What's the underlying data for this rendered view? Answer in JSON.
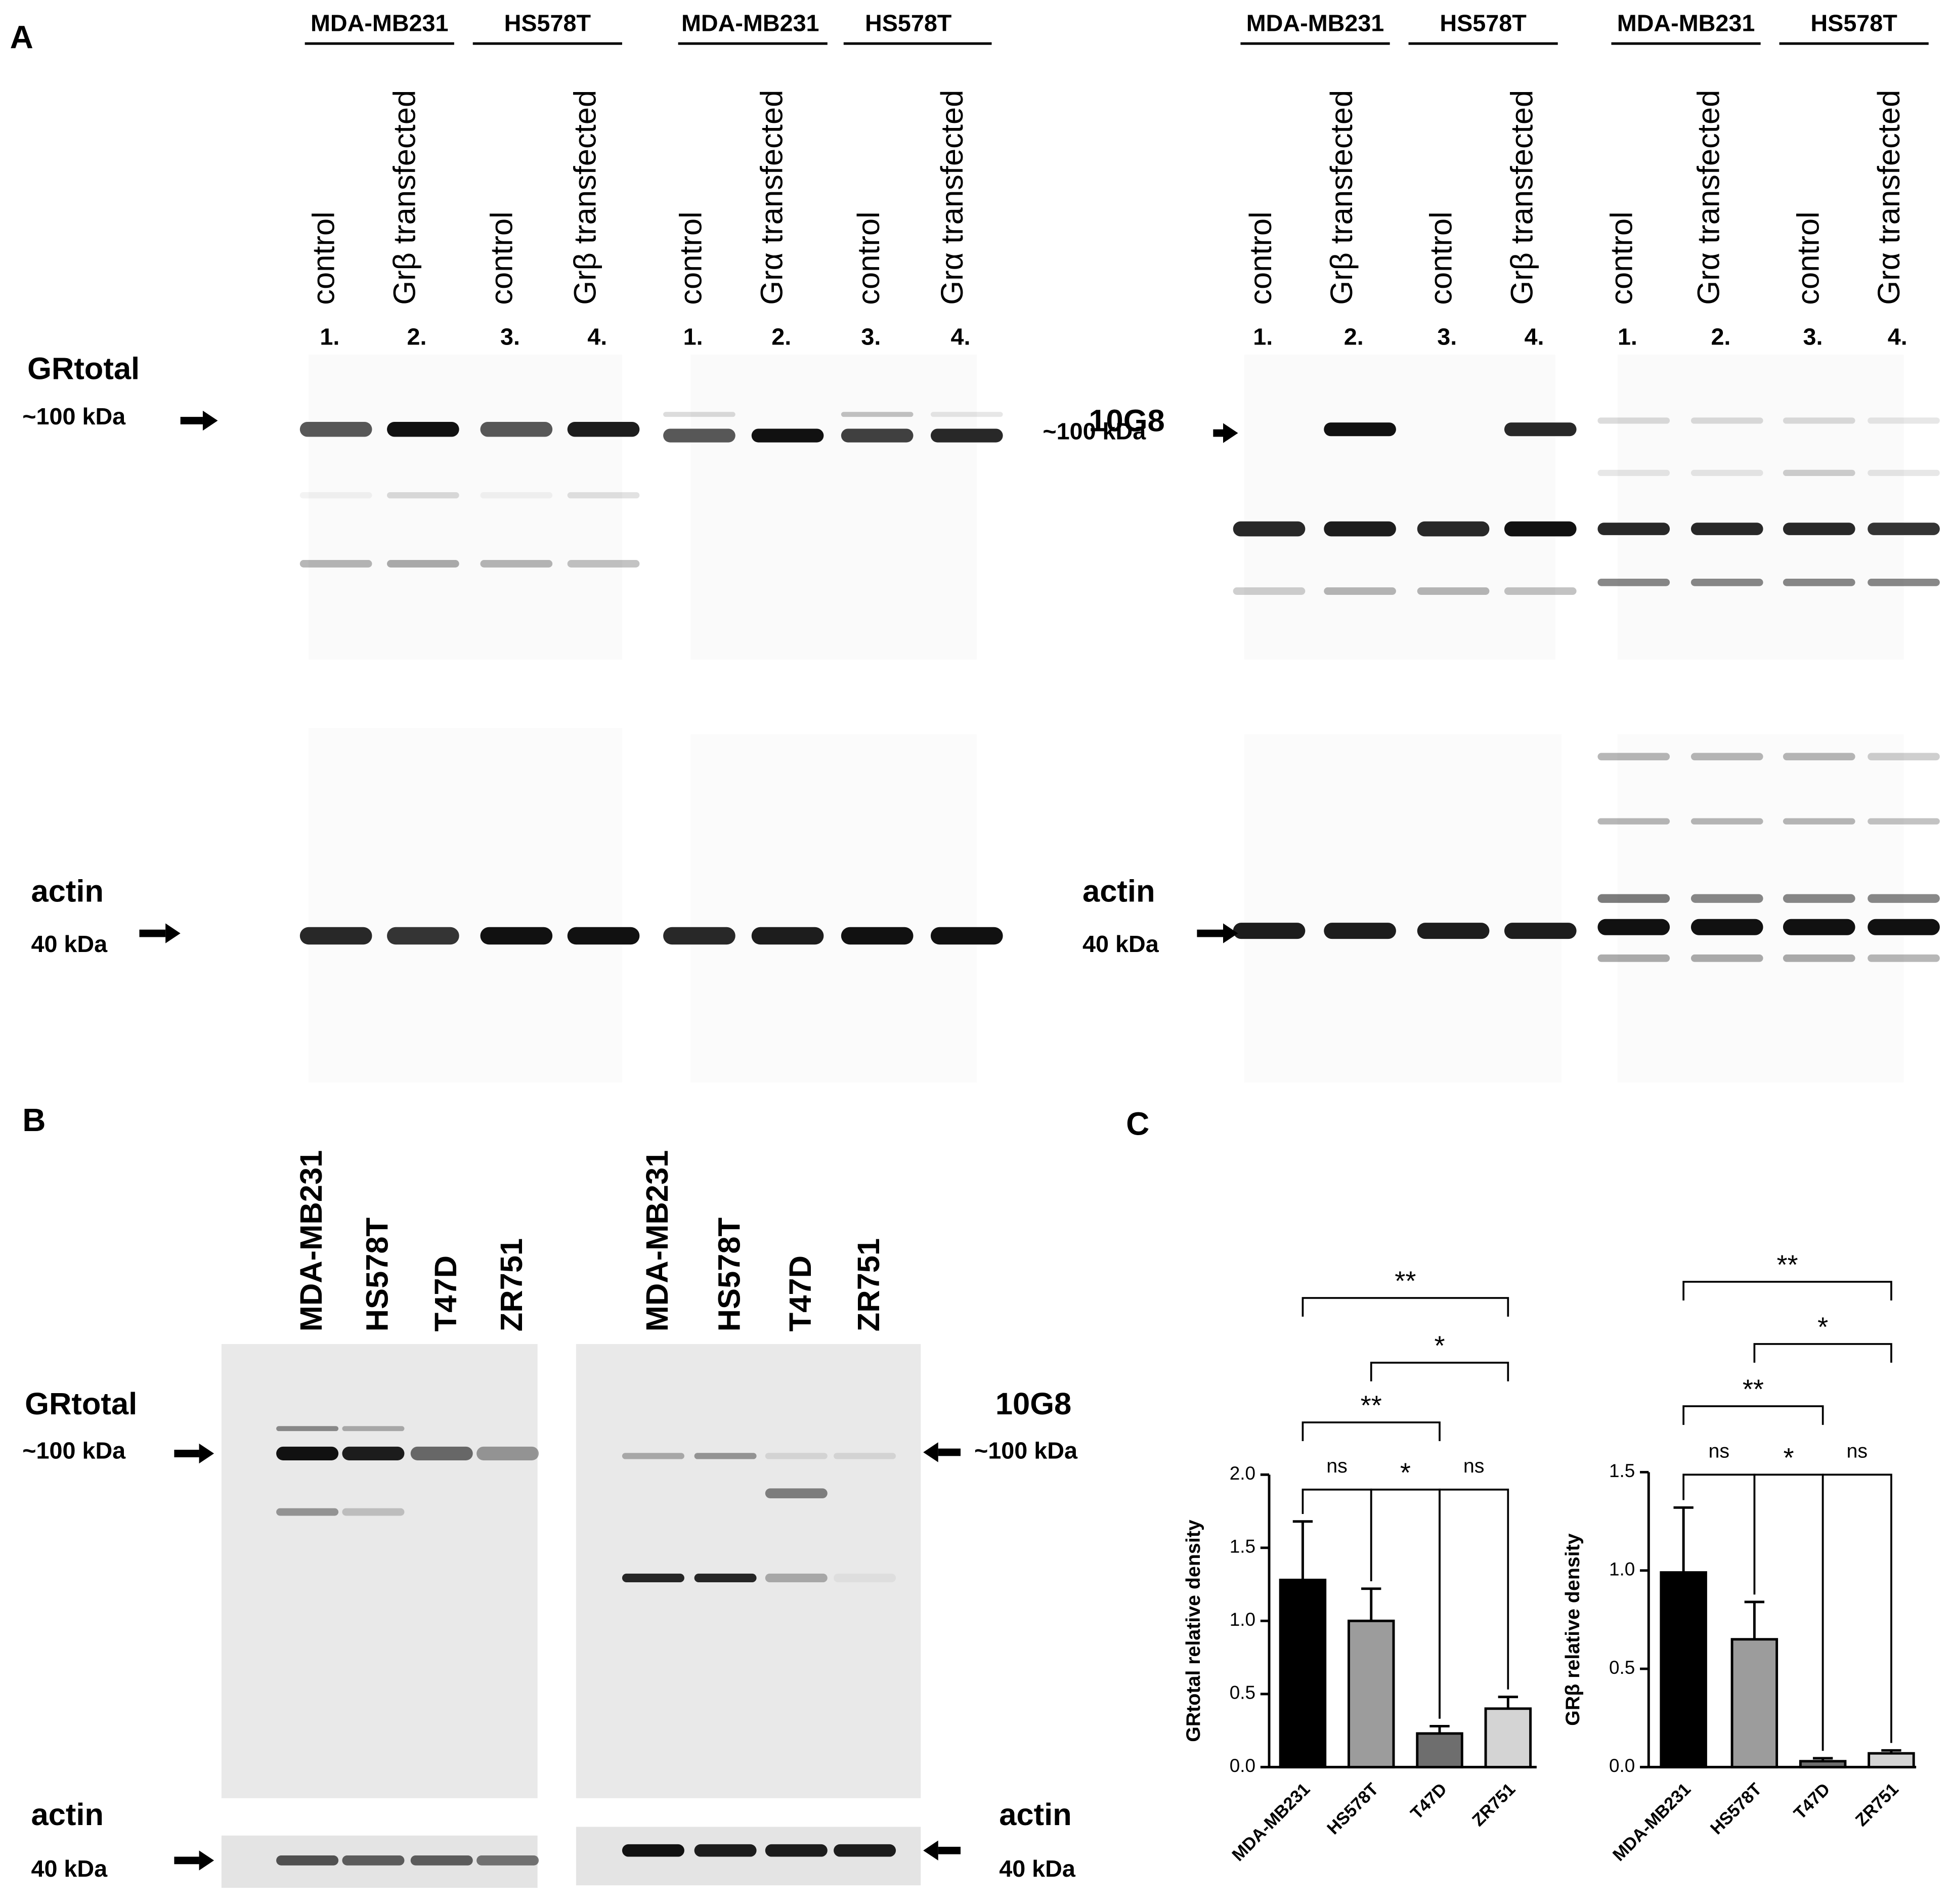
{
  "panel_a": {
    "label": "A",
    "blots": [
      {
        "cell_lines": [
          "MDA-MB231",
          "HS578T"
        ],
        "lanes": [
          "control",
          "Grβ transfected",
          "control",
          "Grβ transfected"
        ],
        "lane_numbers": [
          "1.",
          "2.",
          "3.",
          "4."
        ],
        "antibody": "GRtotal",
        "antibody_size": "~100 kDa",
        "loading": "actin",
        "loading_size": "40 kDa"
      },
      {
        "cell_lines": [
          "MDA-MB231",
          "HS578T"
        ],
        "lanes": [
          "control",
          "Grα transfected",
          "control",
          "Grα transfected"
        ],
        "lane_numbers": [
          "1.",
          "2.",
          "3.",
          "4."
        ]
      },
      {
        "cell_lines": [
          "MDA-MB231",
          "HS578T"
        ],
        "lanes": [
          "control",
          "Grβ transfected",
          "control",
          "Grβ transfected"
        ],
        "lane_numbers": [
          "1.",
          "2.",
          "3.",
          "4."
        ],
        "antibody": "10G8",
        "antibody_size": "~100 kDa",
        "loading": "actin",
        "loading_size": "40 kDa"
      },
      {
        "cell_lines": [
          "MDA-MB231",
          "HS578T"
        ],
        "lanes": [
          "control",
          "Grα transfected",
          "control",
          "Grα transfected"
        ],
        "lane_numbers": [
          "1.",
          "2.",
          "3.",
          "4."
        ]
      }
    ]
  },
  "panel_b": {
    "label": "B",
    "blots": [
      {
        "lanes": [
          "MDA-MB231",
          "HS578T",
          "T47D",
          "ZR751"
        ],
        "antibody": "GRtotal",
        "antibody_size": "~100 kDa",
        "loading": "actin",
        "loading_size": "40 kDa"
      },
      {
        "lanes": [
          "MDA-MB231",
          "HS578T",
          "T47D",
          "ZR751"
        ],
        "antibody": "10G8",
        "antibody_size": "~100 kDa",
        "loading": "actin",
        "loading_size": "40 kDa"
      }
    ]
  },
  "panel_c": {
    "label": "C"
  },
  "chart_data": [
    {
      "type": "bar",
      "ylabel": "GRtotal relative density",
      "categories": [
        "MDA-MB231",
        "HS578T",
        "T47D",
        "ZR751"
      ],
      "values": [
        1.28,
        1.0,
        0.23,
        0.4
      ],
      "errors": [
        0.4,
        0.22,
        0.05,
        0.08
      ],
      "colors": [
        "#000000",
        "#9c9c9c",
        "#6e6e6e",
        "#d4d4d4"
      ],
      "ylim": [
        0,
        2
      ],
      "yticks": [
        {
          "value": 0,
          "label": "0.0"
        },
        {
          "value": 0.5,
          "label": "0.5"
        },
        {
          "value": 1,
          "label": "1.0"
        },
        {
          "value": 1.5,
          "label": "1.5"
        },
        {
          "value": 2,
          "label": "2.0"
        }
      ],
      "annotations": [
        "**",
        "*",
        "**",
        "ns",
        "*",
        "ns"
      ]
    },
    {
      "type": "bar",
      "ylabel": "GRβ relative density",
      "categories": [
        "MDA-MB231",
        "HS578T",
        "T47D",
        "ZR751"
      ],
      "values": [
        0.99,
        0.65,
        0.03,
        0.07
      ],
      "errors": [
        0.33,
        0.19,
        0.015,
        0.015
      ],
      "colors": [
        "#000000",
        "#9c9c9c",
        "#6e6e6e",
        "#d4d4d4"
      ],
      "ylim": [
        0,
        1.5
      ],
      "yticks": [
        {
          "value": 0,
          "label": "0.0"
        },
        {
          "value": 0.5,
          "label": "0.5"
        },
        {
          "value": 1,
          "label": "1.0"
        },
        {
          "value": 1.5,
          "label": "1.5"
        }
      ],
      "annotations": [
        "**",
        "*",
        "**",
        "ns",
        "*",
        "ns"
      ]
    }
  ]
}
